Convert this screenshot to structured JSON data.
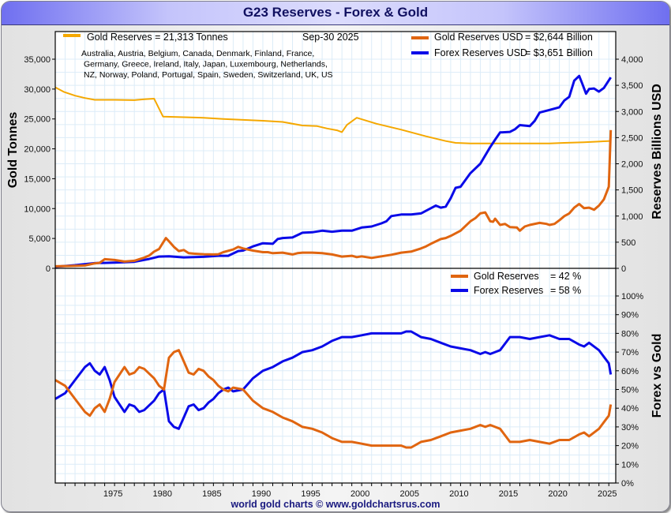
{
  "header": {
    "title": "G23 Reserves - Forex & Gold"
  },
  "footer": {
    "credit": "world gold charts © www.goldchartsrus.com"
  },
  "colors": {
    "gold_tonnes": "#f5a800",
    "gold_usd": "#e06510",
    "forex": "#0a0ae8",
    "grid": "#dcecf8"
  },
  "chart_data": [
    {
      "type": "line",
      "title": "G23 Reserves - Forex & Gold",
      "date_label": "Sep-30  2025",
      "countries_note": [
        "Australia, Austria, Belgium, Canada, Denmark, Finland, France,",
        "Germany, Greece, Ireland, Italy, Japan, Luxembourg, Netherlands,",
        "NZ, Norway, Poland, Portugal, Spain, Sweden, Switzerland, UK, US"
      ],
      "ylabel_left": "Gold Tonnes",
      "ylabel_right": "Reserves Billions USD",
      "ylim_left": [
        0,
        35000
      ],
      "ylim_right": [
        0,
        4000
      ],
      "yticks_left": [
        "0",
        "5,000",
        "10,000",
        "15,000",
        "20,000",
        "25,000",
        "30,000",
        "35,000"
      ],
      "yticks_right": [
        "0",
        "500",
        "1,000",
        "1,500",
        "2,000",
        "2,500",
        "3,000",
        "3,500",
        "4,000"
      ],
      "grid": true,
      "legend": [
        {
          "label": "Gold Reserves = 21,313 Tonnes",
          "position": "top-left"
        },
        {
          "label": "Gold Reserves USD",
          "value": "= $2,644 Billion",
          "position": "top-right"
        },
        {
          "label": "Forex Reserves USD",
          "value": "= $3,651 Billion",
          "position": "top-right"
        }
      ],
      "series": [
        {
          "name": "Gold Reserves (Tonnes)",
          "axis": "left",
          "x": [
            1969.0,
            1969.9,
            1971.0,
            1972.0,
            1973.0,
            1975.0,
            1977.0,
            1978.0,
            1979.0,
            1979.9,
            1984.0,
            1986.0,
            1990.0,
            1992.0,
            1994.0,
            1995.5,
            1996.5,
            1997.5,
            1998.0,
            1998.5,
            1999.5,
            2001.5,
            2004.0,
            2006.5,
            2008.5,
            2009.5,
            2011.0,
            2013.0,
            2016.0,
            2019.0,
            2020.5,
            2022.5,
            2025.2
          ],
          "y": [
            30300,
            29500,
            28900,
            28500,
            28200,
            28200,
            28150,
            28300,
            28400,
            25400,
            25200,
            25000,
            24700,
            24500,
            23900,
            23800,
            23400,
            23100,
            22800,
            24000,
            25200,
            24200,
            23200,
            22100,
            21300,
            21000,
            20900,
            20900,
            20900,
            20900,
            21000,
            21100,
            21313
          ]
        },
        {
          "name": "Gold Reserves USD (Billions)",
          "axis": "right",
          "x": [
            1969.0,
            1970.5,
            1972.0,
            1973.0,
            1973.5,
            1974.0,
            1975.0,
            1976.0,
            1977.0,
            1978.0,
            1978.5,
            1979.0,
            1979.5,
            1980.0,
            1980.2,
            1980.5,
            1981.0,
            1981.5,
            1982.0,
            1982.5,
            1983.0,
            1984.0,
            1985.0,
            1985.5,
            1986.0,
            1987.0,
            1987.5,
            1988.0,
            1989.0,
            1990.0,
            1990.5,
            1991.0,
            1992.0,
            1993.0,
            1993.5,
            1994.0,
            1995.0,
            1996.0,
            1997.0,
            1998.0,
            1999.0,
            1999.5,
            2000.0,
            2001.0,
            2002.0,
            2003.0,
            2004.0,
            2005.0,
            2006.0,
            2006.5,
            2007.0,
            2008.0,
            2008.5,
            2009.0,
            2010.0,
            2011.0,
            2011.5,
            2012.0,
            2012.5,
            2013.0,
            2013.3,
            2013.5,
            2014.0,
            2014.5,
            2015.0,
            2015.7,
            2016.0,
            2016.5,
            2017.0,
            2018.0,
            2018.7,
            2019.0,
            2019.5,
            2020.0,
            2020.5,
            2021.0,
            2021.5,
            2022.0,
            2022.5,
            2023.0,
            2023.5,
            2024.0,
            2024.5,
            2025.0,
            2025.2
          ],
          "y": [
            40,
            45,
            55,
            95,
            105,
            175,
            160,
            130,
            145,
            205,
            245,
            320,
            370,
            520,
            580,
            520,
            410,
            330,
            350,
            290,
            280,
            270,
            265,
            270,
            310,
            360,
            410,
            380,
            340,
            310,
            310,
            290,
            300,
            265,
            290,
            300,
            300,
            290,
            265,
            225,
            240,
            215,
            230,
            200,
            230,
            260,
            300,
            320,
            380,
            420,
            470,
            560,
            580,
            620,
            720,
            900,
            960,
            1050,
            1070,
            900,
            890,
            950,
            830,
            850,
            790,
            780,
            720,
            800,
            830,
            870,
            850,
            830,
            850,
            920,
            1000,
            1050,
            1160,
            1230,
            1150,
            1160,
            1120,
            1200,
            1320,
            1560,
            2644
          ]
        },
        {
          "name": "Forex Reserves USD (Billions)",
          "axis": "right",
          "x": [
            1969.0,
            1971.0,
            1973.0,
            1975.0,
            1977.0,
            1978.5,
            1979.5,
            1980.5,
            1982.0,
            1983.0,
            1984.0,
            1985.5,
            1986.5,
            1987.0,
            1987.5,
            1988.0,
            1989.0,
            1990.0,
            1991.0,
            1991.5,
            1992.0,
            1993.0,
            1994.0,
            1995.0,
            1996.0,
            1997.0,
            1998.0,
            1998.5,
            1999.0,
            2000.0,
            2001.0,
            2002.0,
            2002.5,
            2003.0,
            2004.0,
            2005.0,
            2006.0,
            2007.0,
            2007.5,
            2008.0,
            2008.5,
            2009.0,
            2009.5,
            2010.0,
            2011.0,
            2012.0,
            2013.0,
            2013.5,
            2014.0,
            2015.0,
            2015.5,
            2016.0,
            2017.0,
            2017.5,
            2018.0,
            2019.0,
            2020.0,
            2020.5,
            2021.0,
            2021.5,
            2022.0,
            2022.3,
            2022.7,
            2023.0,
            2023.5,
            2024.0,
            2024.5,
            2025.2
          ],
          "y": [
            30,
            60,
            100,
            110,
            125,
            180,
            225,
            230,
            210,
            215,
            220,
            240,
            240,
            285,
            330,
            340,
            420,
            480,
            470,
            560,
            580,
            590,
            680,
            690,
            720,
            700,
            720,
            720,
            720,
            780,
            800,
            860,
            900,
            1000,
            1030,
            1030,
            1050,
            1150,
            1200,
            1160,
            1180,
            1340,
            1540,
            1560,
            1820,
            2000,
            2320,
            2460,
            2600,
            2610,
            2660,
            2740,
            2720,
            2820,
            2980,
            3030,
            3080,
            3210,
            3280,
            3590,
            3680,
            3540,
            3340,
            3430,
            3440,
            3380,
            3450,
            3651
          ]
        }
      ]
    },
    {
      "type": "line",
      "title": "",
      "ylabel_right": "Forex vs Gold",
      "ylim_right": [
        0,
        100
      ],
      "yticks_right": [
        "0%",
        "10%",
        "20%",
        "30%",
        "40%",
        "50%",
        "60%",
        "70%",
        "80%",
        "90%",
        "100%"
      ],
      "x_ticks": [
        "1975",
        "1980",
        "1985",
        "1990",
        "1995",
        "2000",
        "2005",
        "2010",
        "2015",
        "2020",
        "2025"
      ],
      "grid": true,
      "legend": [
        {
          "label": "Gold Reserves",
          "value": "= 42 %",
          "position": "top-right"
        },
        {
          "label": "Forex Reserves",
          "value": "= 58 %",
          "position": "top-right"
        }
      ],
      "series": [
        {
          "name": "Gold Reserves %",
          "x": [
            1969.0,
            1970.0,
            1971.0,
            1972.0,
            1972.5,
            1973.0,
            1973.5,
            1974.0,
            1974.5,
            1975.0,
            1976.0,
            1976.5,
            1977.0,
            1977.5,
            1978.0,
            1979.0,
            1979.5,
            1980.0,
            1980.5,
            1981.0,
            1981.5,
            1982.0,
            1982.5,
            1983.0,
            1983.5,
            1984.0,
            1984.5,
            1985.0,
            1985.5,
            1986.0,
            1986.5,
            1987.0,
            1988.0,
            1988.5,
            1989.0,
            1990.0,
            1991.0,
            1992.0,
            1993.0,
            1994.0,
            1995.0,
            1996.0,
            1997.0,
            1998.0,
            1999.0,
            2000.0,
            2001.0,
            2002.0,
            2003.0,
            2004.0,
            2004.5,
            2005.0,
            2006.0,
            2007.0,
            2008.0,
            2009.0,
            2010.0,
            2011.0,
            2012.0,
            2012.5,
            2013.0,
            2013.5,
            2014.0,
            2015.0,
            2016.0,
            2017.0,
            2018.0,
            2019.0,
            2020.0,
            2021.0,
            2022.0,
            2022.5,
            2023.0,
            2024.0,
            2025.0,
            2025.2
          ],
          "y": [
            55,
            52,
            45,
            38,
            36,
            40,
            42,
            38,
            45,
            54,
            62,
            58,
            59,
            62,
            61,
            56,
            52,
            50,
            67,
            70,
            71,
            65,
            59,
            58,
            61,
            60,
            57,
            55,
            52,
            50,
            49,
            51,
            50,
            47,
            44,
            40,
            38,
            35,
            33,
            30,
            29,
            27,
            24,
            22,
            22,
            21,
            20,
            20,
            20,
            20,
            19,
            19,
            22,
            23,
            25,
            27,
            28,
            29,
            31,
            30,
            31,
            30,
            29,
            22,
            22,
            23,
            22,
            21,
            23,
            23,
            26,
            27,
            25,
            29,
            36,
            42
          ]
        },
        {
          "name": "Forex Reserves %",
          "x": [
            1969.0,
            1970.0,
            1971.0,
            1972.0,
            1972.5,
            1973.0,
            1973.5,
            1974.0,
            1974.5,
            1975.0,
            1976.0,
            1976.5,
            1977.0,
            1977.5,
            1978.0,
            1979.0,
            1979.5,
            1980.0,
            1980.5,
            1981.0,
            1981.5,
            1982.0,
            1982.5,
            1983.0,
            1983.5,
            1984.0,
            1984.5,
            1985.0,
            1985.5,
            1986.0,
            1986.5,
            1987.0,
            1988.0,
            1988.5,
            1989.0,
            1990.0,
            1991.0,
            1992.0,
            1993.0,
            1994.0,
            1995.0,
            1996.0,
            1997.0,
            1998.0,
            1999.0,
            2000.0,
            2001.0,
            2002.0,
            2003.0,
            2004.0,
            2004.5,
            2005.0,
            2006.0,
            2007.0,
            2008.0,
            2009.0,
            2010.0,
            2011.0,
            2012.0,
            2012.5,
            2013.0,
            2013.5,
            2014.0,
            2015.0,
            2016.0,
            2017.0,
            2018.0,
            2019.0,
            2020.0,
            2021.0,
            2022.0,
            2022.5,
            2023.0,
            2024.0,
            2025.0,
            2025.2
          ],
          "y": [
            45,
            48,
            55,
            62,
            64,
            60,
            58,
            62,
            55,
            46,
            38,
            42,
            41,
            38,
            39,
            44,
            48,
            50,
            33,
            30,
            29,
            35,
            41,
            42,
            39,
            40,
            43,
            45,
            48,
            50,
            51,
            49,
            50,
            53,
            56,
            60,
            62,
            65,
            67,
            70,
            71,
            73,
            76,
            78,
            78,
            79,
            80,
            80,
            80,
            80,
            81,
            81,
            78,
            77,
            75,
            73,
            72,
            71,
            69,
            70,
            69,
            70,
            71,
            78,
            78,
            77,
            78,
            79,
            77,
            77,
            74,
            73,
            75,
            71,
            64,
            58
          ]
        }
      ]
    }
  ]
}
